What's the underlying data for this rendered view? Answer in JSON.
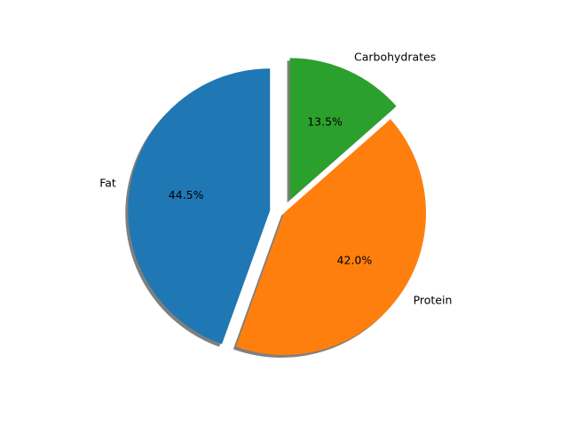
{
  "chart_data": {
    "type": "pie",
    "title": "",
    "labels": [
      "Fat",
      "Protein",
      "Carbohydrates"
    ],
    "values": [
      44.5,
      42.0,
      13.5
    ],
    "percent_labels": [
      "44.5%",
      "42.0%",
      "13.5%"
    ],
    "colors": [
      "#1f77b4",
      "#ff7f0e",
      "#2ca02c"
    ],
    "exploded": [
      true,
      false,
      true
    ],
    "start_angle_deg": 90,
    "direction": "counterclockwise",
    "shadow": true,
    "legend": "none"
  }
}
